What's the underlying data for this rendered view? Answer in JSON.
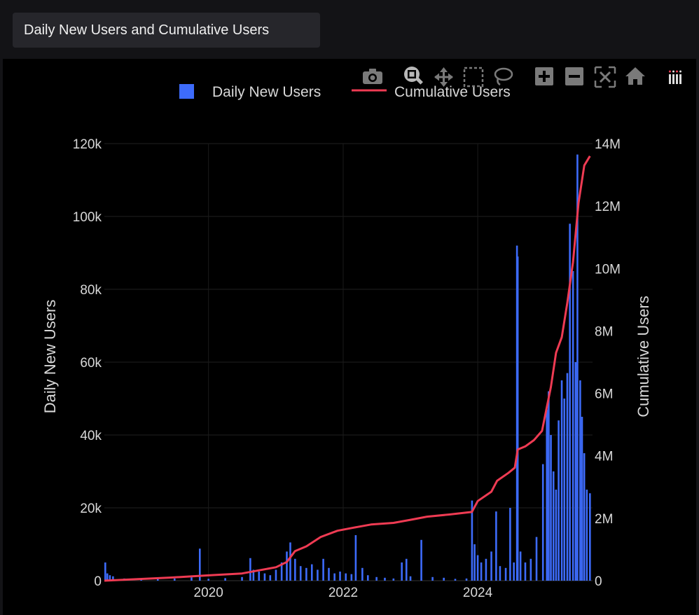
{
  "window": {
    "title": "Daily New Users and Cumulative Users"
  },
  "modebar": {
    "buttons": [
      "camera-icon",
      "zoom-icon",
      "pan-icon",
      "box-select-icon",
      "lasso-icon",
      "zoom-in-icon",
      "zoom-out-icon",
      "autoscale-icon",
      "home-icon",
      "plotly-logo-icon"
    ]
  },
  "colors": {
    "bar": "#3d6bfa",
    "line": "#ef3b53",
    "background": "#000000"
  },
  "chart_data": {
    "type": "bar",
    "title": "",
    "xlabel": "",
    "ylabel": "Daily New Users",
    "y2label": "Cumulative Users",
    "legend": [
      "Daily New Users",
      "Cumulative Users"
    ],
    "legend_position": "top-center",
    "xlim": [
      "2018-06-15",
      "2025-09-15"
    ],
    "ylim": [
      0,
      120000
    ],
    "y2lim": [
      0,
      14000000
    ],
    "x_ticks": [
      "2020",
      "2022",
      "2024"
    ],
    "y_ticks": [
      "0",
      "20k",
      "40k",
      "60k",
      "80k",
      "100k",
      "120k"
    ],
    "y2_ticks": [
      "0",
      "2M",
      "4M",
      "6M",
      "8M",
      "10M",
      "12M",
      "14M"
    ],
    "grid": true,
    "series": [
      {
        "name": "Daily New Users",
        "type": "bar",
        "points": [
          [
            "2018-06-20",
            5000
          ],
          [
            "2018-07-01",
            2000
          ],
          [
            "2018-07-15",
            1500
          ],
          [
            "2018-08-01",
            1200
          ],
          [
            "2018-10-01",
            600
          ],
          [
            "2019-01-01",
            700
          ],
          [
            "2019-04-01",
            500
          ],
          [
            "2019-07-01",
            600
          ],
          [
            "2019-10-01",
            900
          ],
          [
            "2019-11-15",
            8800
          ],
          [
            "2020-01-01",
            500
          ],
          [
            "2020-04-01",
            700
          ],
          [
            "2020-07-01",
            1000
          ],
          [
            "2020-08-15",
            6200
          ],
          [
            "2020-09-01",
            3000
          ],
          [
            "2020-10-01",
            2500
          ],
          [
            "2020-11-01",
            2000
          ],
          [
            "2020-12-01",
            1500
          ],
          [
            "2021-01-01",
            3000
          ],
          [
            "2021-02-01",
            5000
          ],
          [
            "2021-03-01",
            8000
          ],
          [
            "2021-03-20",
            10500
          ],
          [
            "2021-04-15",
            6000
          ],
          [
            "2021-05-15",
            4000
          ],
          [
            "2021-06-15",
            3500
          ],
          [
            "2021-07-15",
            4500
          ],
          [
            "2021-08-15",
            3000
          ],
          [
            "2021-09-15",
            6000
          ],
          [
            "2021-10-15",
            3500
          ],
          [
            "2021-11-15",
            2000
          ],
          [
            "2021-12-15",
            2500
          ],
          [
            "2022-01-15",
            2000
          ],
          [
            "2022-02-15",
            1800
          ],
          [
            "2022-03-10",
            12500
          ],
          [
            "2022-04-15",
            3500
          ],
          [
            "2022-05-15",
            1500
          ],
          [
            "2022-07-01",
            1000
          ],
          [
            "2022-08-15",
            800
          ],
          [
            "2022-10-01",
            600
          ],
          [
            "2022-11-15",
            5000
          ],
          [
            "2022-12-10",
            6000
          ],
          [
            "2023-01-01",
            1200
          ],
          [
            "2023-03-01",
            11200
          ],
          [
            "2023-05-01",
            1000
          ],
          [
            "2023-07-01",
            800
          ],
          [
            "2023-09-01",
            500
          ],
          [
            "2023-11-01",
            600
          ],
          [
            "2023-12-01",
            22000
          ],
          [
            "2023-12-15",
            10000
          ],
          [
            "2024-01-01",
            7000
          ],
          [
            "2024-01-20",
            5000
          ],
          [
            "2024-02-15",
            6000
          ],
          [
            "2024-03-15",
            8000
          ],
          [
            "2024-04-10",
            19000
          ],
          [
            "2024-05-01",
            4000
          ],
          [
            "2024-06-01",
            3500
          ],
          [
            "2024-06-25",
            20000
          ],
          [
            "2024-07-15",
            5000
          ],
          [
            "2024-08-01",
            92000
          ],
          [
            "2024-08-05",
            89000
          ],
          [
            "2024-08-20",
            8000
          ],
          [
            "2024-09-15",
            5000
          ],
          [
            "2024-10-15",
            6000
          ],
          [
            "2024-11-15",
            12000
          ],
          [
            "2024-12-20",
            32000
          ],
          [
            "2025-01-10",
            47000
          ],
          [
            "2025-01-20",
            52000
          ],
          [
            "2025-02-01",
            40000
          ],
          [
            "2025-02-15",
            30000
          ],
          [
            "2025-03-01",
            25000
          ],
          [
            "2025-03-15",
            44000
          ],
          [
            "2025-04-01",
            55000
          ],
          [
            "2025-04-15",
            50000
          ],
          [
            "2025-05-01",
            57000
          ],
          [
            "2025-05-15",
            98000
          ],
          [
            "2025-06-01",
            85000
          ],
          [
            "2025-06-15",
            60000
          ],
          [
            "2025-06-25",
            117000
          ],
          [
            "2025-07-10",
            55000
          ],
          [
            "2025-07-20",
            45000
          ],
          [
            "2025-08-01",
            35000
          ],
          [
            "2025-08-15",
            25000
          ],
          [
            "2025-09-01",
            24000
          ]
        ]
      },
      {
        "name": "Cumulative Users",
        "type": "line",
        "points": [
          [
            "2018-06-15",
            0
          ],
          [
            "2019-06-15",
            100000
          ],
          [
            "2020-01-01",
            170000
          ],
          [
            "2020-07-01",
            230000
          ],
          [
            "2021-01-01",
            430000
          ],
          [
            "2021-03-01",
            600000
          ],
          [
            "2021-04-15",
            950000
          ],
          [
            "2021-06-15",
            1100000
          ],
          [
            "2021-09-01",
            1400000
          ],
          [
            "2021-12-01",
            1600000
          ],
          [
            "2022-03-01",
            1700000
          ],
          [
            "2022-06-01",
            1800000
          ],
          [
            "2022-10-01",
            1850000
          ],
          [
            "2023-01-01",
            1950000
          ],
          [
            "2023-04-01",
            2050000
          ],
          [
            "2023-08-01",
            2120000
          ],
          [
            "2023-11-30",
            2200000
          ],
          [
            "2024-01-01",
            2550000
          ],
          [
            "2024-03-15",
            2850000
          ],
          [
            "2024-04-15",
            3200000
          ],
          [
            "2024-06-15",
            3450000
          ],
          [
            "2024-07-20",
            3620000
          ],
          [
            "2024-08-05",
            4200000
          ],
          [
            "2024-09-15",
            4300000
          ],
          [
            "2024-11-01",
            4500000
          ],
          [
            "2024-12-15",
            4800000
          ],
          [
            "2025-02-01",
            6200000
          ],
          [
            "2025-03-01",
            7300000
          ],
          [
            "2025-04-01",
            7800000
          ],
          [
            "2025-05-01",
            8900000
          ],
          [
            "2025-06-01",
            10200000
          ],
          [
            "2025-07-01",
            12100000
          ],
          [
            "2025-08-01",
            13300000
          ],
          [
            "2025-09-01",
            13600000
          ]
        ]
      }
    ]
  }
}
